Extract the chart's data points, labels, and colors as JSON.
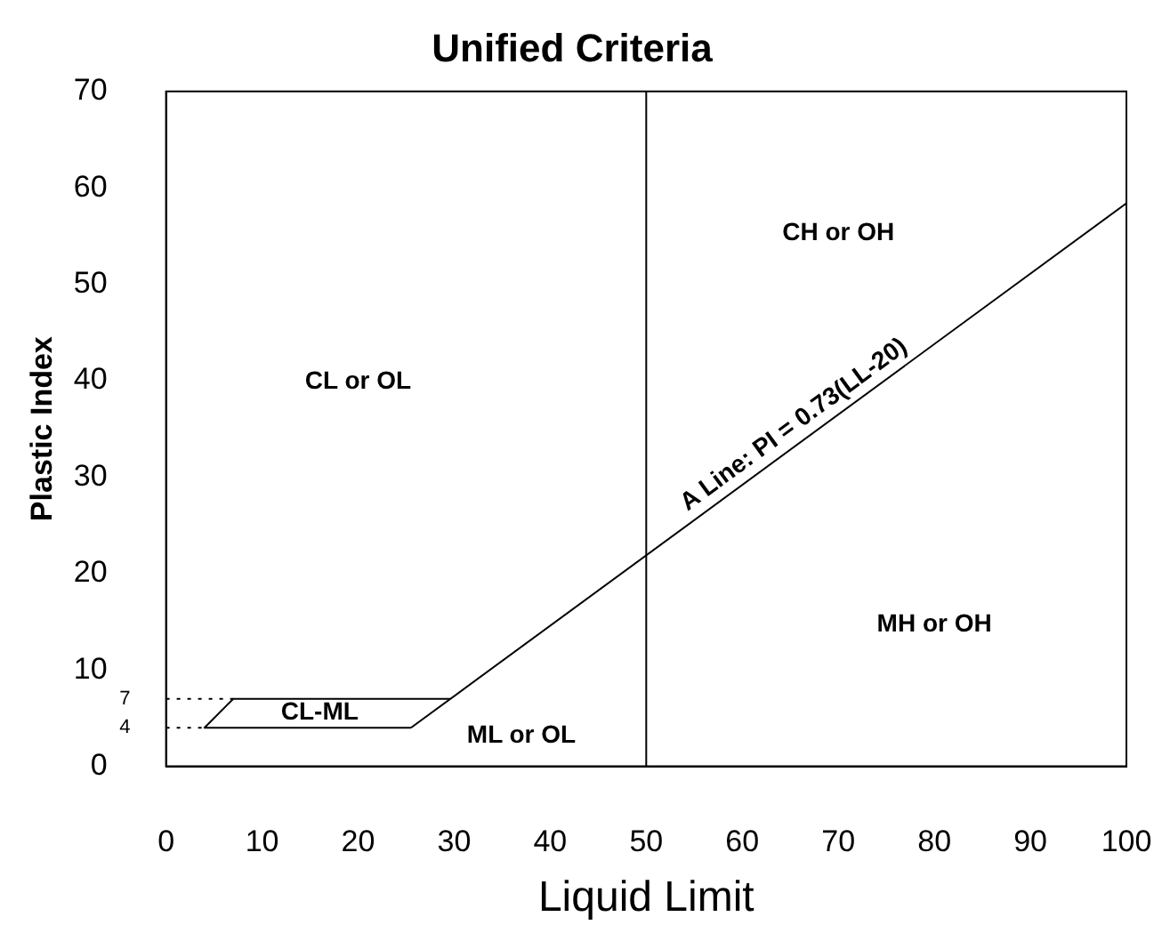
{
  "chart_data": {
    "type": "line",
    "title": "Unified Criteria",
    "xlabel": "Liquid Limit",
    "ylabel": "Plastic Index",
    "xlim": [
      0,
      100
    ],
    "xticks": [
      0,
      10,
      20,
      30,
      40,
      50,
      60,
      70,
      80,
      90,
      100
    ],
    "ylim": [
      0,
      70
    ],
    "yticks": [
      0,
      10,
      20,
      30,
      40,
      50,
      60,
      70
    ],
    "grid": false,
    "legend": false,
    "marker": "none",
    "line_style": "solid",
    "series": [
      {
        "x": [
          25.5,
          100
        ],
        "values": [
          4,
          58.4
        ],
        "color": "#000000"
      },
      {
        "x": [
          25.5,
          4,
          7,
          29.6
        ],
        "values": [
          4,
          4,
          7,
          7
        ],
        "color": "#000000"
      },
      {
        "x": [
          0,
          4
        ],
        "values": [
          4,
          4
        ],
        "color": "#000000",
        "line_style": "dotted"
      },
      {
        "x": [
          0,
          7
        ],
        "values": [
          7,
          7
        ],
        "color": "#000000",
        "line_style": "dotted"
      }
    ],
    "ref_lines": [
      {
        "axis": "x",
        "value": 50,
        "color": "#000000"
      }
    ],
    "annotations": [
      "CL or OL",
      "CH or OH",
      "MH or OH",
      "ML or OL",
      "CL-ML",
      "A Line: PI = 0.73(LL-20)",
      {
        "text": "4",
        "x": 0,
        "y": 4
      },
      {
        "text": "7",
        "x": 0,
        "y": 7
      }
    ]
  }
}
